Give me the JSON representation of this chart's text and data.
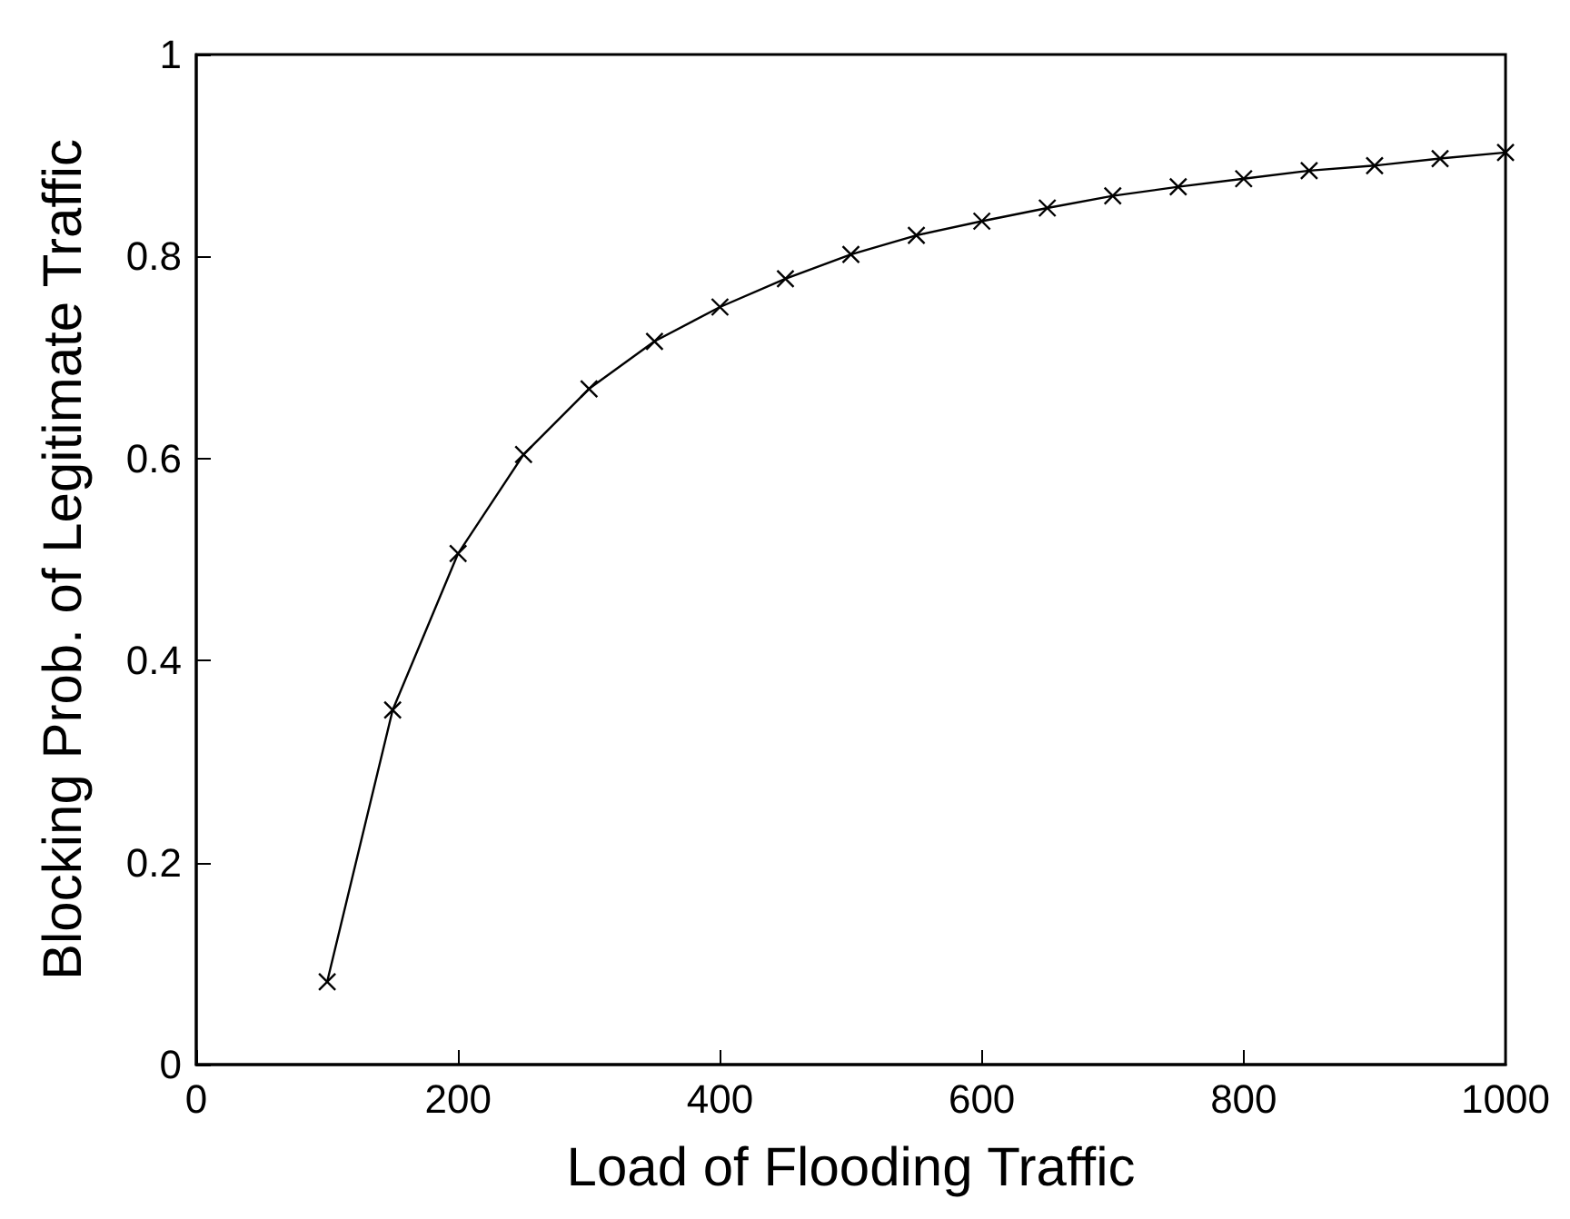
{
  "chart_data": {
    "type": "line",
    "xlabel": "Load of Flooding Traffic",
    "ylabel": "Blocking Prob. of Legitimate Traffic",
    "x": [
      100,
      150,
      200,
      250,
      300,
      350,
      400,
      450,
      500,
      550,
      600,
      650,
      700,
      750,
      800,
      850,
      900,
      950,
      1000
    ],
    "series": [
      {
        "color": "#000000",
        "values": [
          0.082,
          0.351,
          0.506,
          0.604,
          0.669,
          0.716,
          0.75,
          0.778,
          0.802,
          0.821,
          0.835,
          0.848,
          0.86,
          0.869,
          0.877,
          0.885,
          0.89,
          0.897,
          0.903
        ]
      }
    ],
    "xlim": [
      0,
      1000
    ],
    "xticks": [
      0,
      200,
      400,
      600,
      800,
      1000
    ],
    "ylim": [
      0,
      1
    ],
    "yticks": [
      0,
      0.2,
      0.4,
      0.6,
      0.8,
      1
    ],
    "marker": "cross",
    "line_style": "solid"
  }
}
